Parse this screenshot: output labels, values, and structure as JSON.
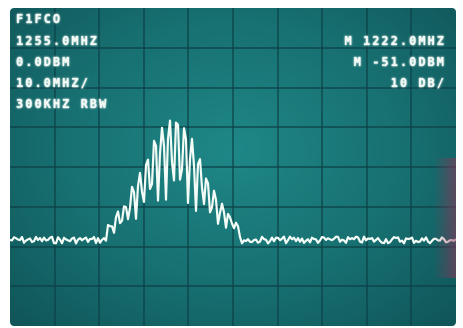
{
  "readout": {
    "left": [
      "F1FCO",
      "1255.0MHZ",
      "0.0DBM",
      "10.0MHZ/",
      "300KHZ RBW"
    ],
    "right": [
      "M 1222.0MHZ",
      "M -51.0DBM",
      "10 DB/"
    ]
  },
  "display": {
    "trace_color": "#f2fbf6",
    "grid_color": "#0c3f45",
    "screen_color": "#176f70"
  }
}
